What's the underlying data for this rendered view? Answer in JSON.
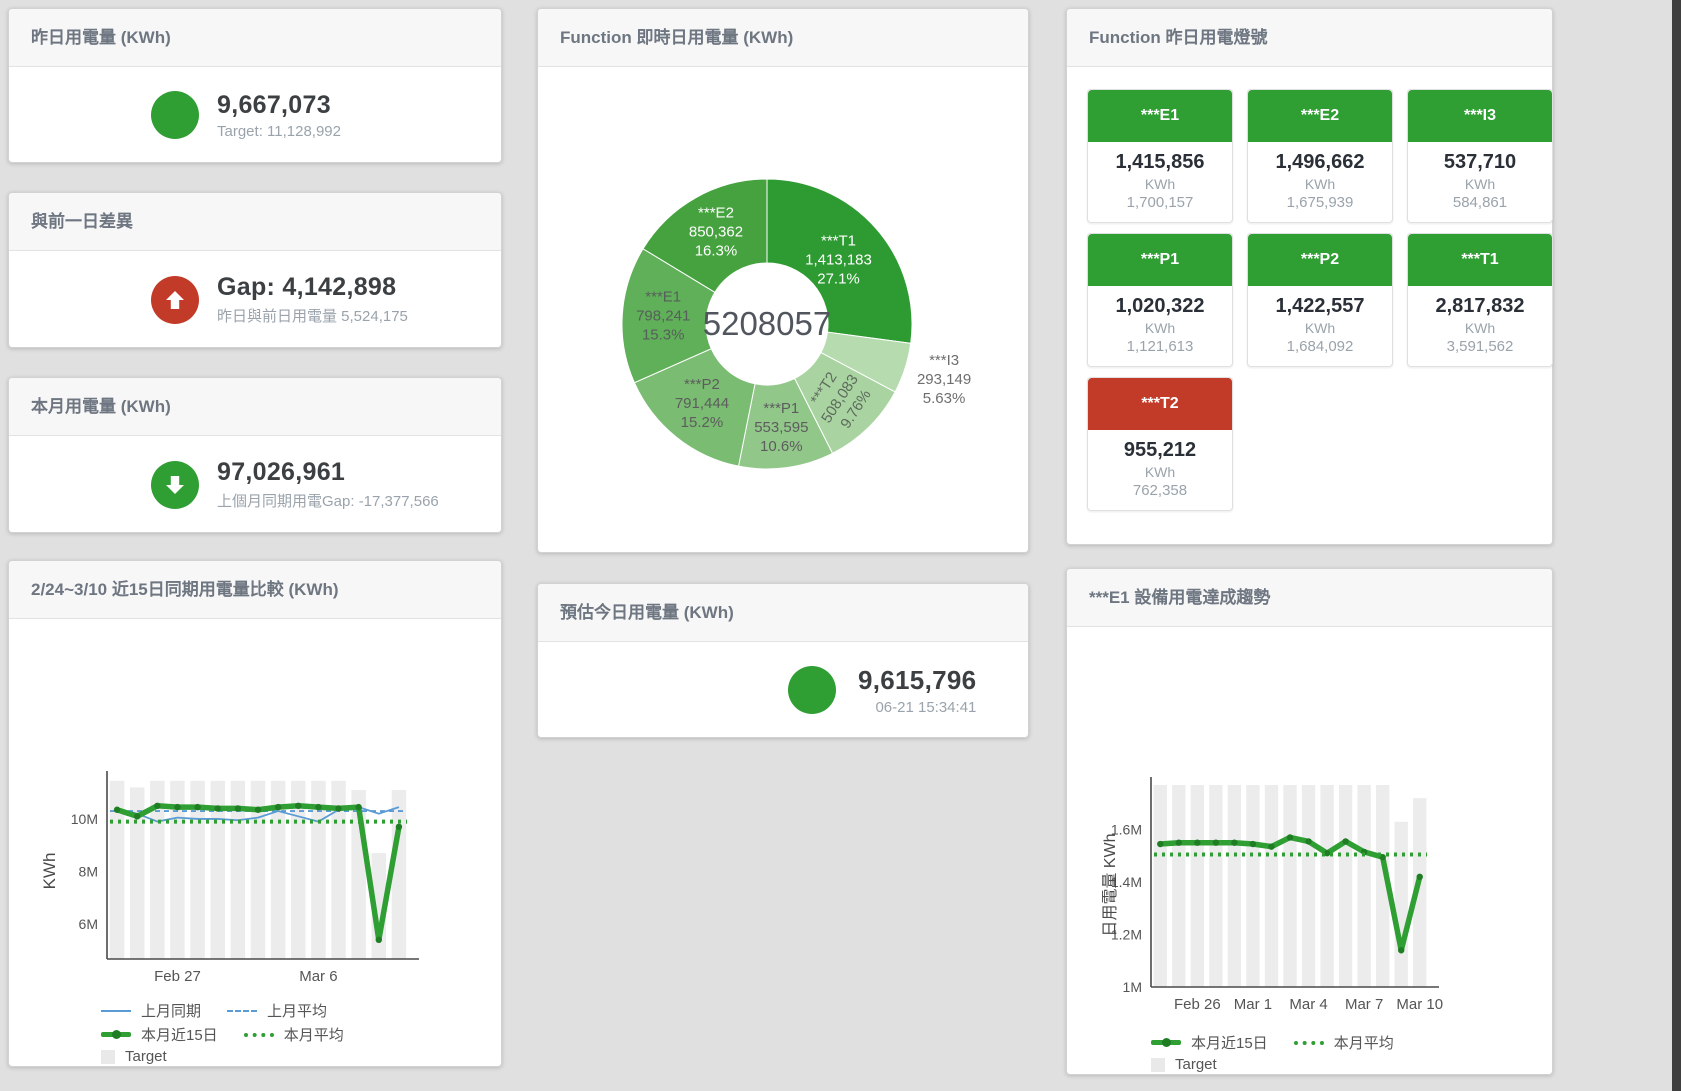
{
  "colors": {
    "green": "#2f9e33",
    "dark_green": "#1f7d24",
    "red": "#c23b28",
    "blue": "#5b9bd5",
    "bar_gray": "#ececec",
    "axis": "#4a4a4a"
  },
  "cards": {
    "yesterday": {
      "title": "昨日用電量 (KWh)",
      "value": "9,667,073",
      "sub": "Target: 11,128,992",
      "status_icon": "green-circle"
    },
    "diff": {
      "title": "與前一日差異",
      "value": "Gap: 4,142,898",
      "sub": "昨日與前日用電量 5,524,175",
      "status_icon": "red-up-arrow"
    },
    "month": {
      "title": "本月用電量 (KWh)",
      "value": "97,026,961",
      "sub": "上個月同期用電Gap: -17,377,566",
      "status_icon": "green-down-arrow"
    },
    "estimate": {
      "title": "預估今日用電量 (KWh)",
      "value": "9,615,796",
      "sub": "06-21 15:34:41",
      "status_icon": "green-circle"
    }
  },
  "lights": {
    "title": "Function 昨日用電燈號",
    "items": [
      {
        "label": "***E1",
        "value": "1,415,856",
        "unit": "KWh",
        "sub": "1,700,157",
        "status": "green"
      },
      {
        "label": "***E2",
        "value": "1,496,662",
        "unit": "KWh",
        "sub": "1,675,939",
        "status": "green"
      },
      {
        "label": "***I3",
        "value": "537,710",
        "unit": "KWh",
        "sub": "584,861",
        "status": "green"
      },
      {
        "label": "***P1",
        "value": "1,020,322",
        "unit": "KWh",
        "sub": "1,121,613",
        "status": "green"
      },
      {
        "label": "***P2",
        "value": "1,422,557",
        "unit": "KWh",
        "sub": "1,684,092",
        "status": "green"
      },
      {
        "label": "***T1",
        "value": "2,817,832",
        "unit": "KWh",
        "sub": "3,591,562",
        "status": "green"
      },
      {
        "label": "***T2",
        "value": "955,212",
        "unit": "KWh",
        "sub": "762,358",
        "status": "red"
      }
    ]
  },
  "chart_data": [
    {
      "id": "donut",
      "type": "pie",
      "title": "Function 即時日用電量 (KWh)",
      "center_label": "5208057",
      "slices": [
        {
          "name": "***T1",
          "value": 1413183,
          "pct": "27.1%",
          "pct_num": 27.1,
          "color": "#2e9b32",
          "label_color": "#ffffff",
          "label_pos": "inside",
          "label_r": 95
        },
        {
          "name": "***I3",
          "value": 293149,
          "pct": "5.63%",
          "pct_num": 5.63,
          "color": "#b5dbae",
          "label_color": "#6e6e6e",
          "label_pos": "outside",
          "label_r": 186
        },
        {
          "name": "***T2",
          "value": 508083,
          "pct": "9.76%",
          "pct_num": 9.76,
          "color": "#a9d4a1",
          "label_color": "#5d6b5d",
          "label_pos": "inside",
          "label_r": 106,
          "rotate": -57
        },
        {
          "name": "***P1",
          "value": 553595,
          "pct": "10.6%",
          "pct_num": 10.6,
          "color": "#92c78a",
          "label_color": "#5d5d5d",
          "label_pos": "inside",
          "label_r": 106
        },
        {
          "name": "***P2",
          "value": 791444,
          "pct": "15.2%",
          "pct_num": 15.2,
          "color": "#7abc72",
          "label_color": "#5d5d5d",
          "label_pos": "inside",
          "label_r": 104
        },
        {
          "name": "***E1",
          "value": 798241,
          "pct": "15.3%",
          "pct_num": 15.3,
          "color": "#60af59",
          "label_color": "#56605a",
          "label_pos": "inside",
          "label_r": 104
        },
        {
          "name": "***E2",
          "value": 850362,
          "pct": "16.3%",
          "pct_num": 16.3,
          "color": "#45a23f",
          "label_color": "#ffffff",
          "label_pos": "inside",
          "label_r": 104
        }
      ]
    },
    {
      "id": "compare",
      "type": "line+bar",
      "title": "2/24~3/10 近15日同期用電量比較 (KWh)",
      "ylabel": "KWh",
      "unit": "M KWh",
      "ylim": [
        4.67,
        11.52
      ],
      "yticks": [
        {
          "v": 6,
          "label": "6M"
        },
        {
          "v": 8,
          "label": "8M"
        },
        {
          "v": 10,
          "label": "10M"
        }
      ],
      "xticks": [
        {
          "i": 3,
          "label": "Feb 27"
        },
        {
          "i": 10,
          "label": "Mar 6"
        }
      ],
      "target_bars": [
        11.45,
        11.2,
        11.45,
        11.45,
        11.45,
        11.45,
        11.45,
        11.45,
        11.45,
        11.45,
        11.45,
        11.45,
        11.1,
        8.7,
        11.1
      ],
      "series": [
        {
          "name": "上月同期",
          "style": "blue-solid",
          "values": [
            10.4,
            10.2,
            9.9,
            10.05,
            10.0,
            10.0,
            9.95,
            10.05,
            10.3,
            10.1,
            9.9,
            10.35,
            10.45,
            10.2,
            10.45
          ]
        },
        {
          "name": "上月平均",
          "style": "blue-dashed",
          "avg_value": 10.3
        },
        {
          "name": "本月近15日",
          "style": "green-thick",
          "values": [
            10.35,
            10.1,
            10.5,
            10.45,
            10.45,
            10.4,
            10.4,
            10.35,
            10.45,
            10.5,
            10.45,
            10.4,
            10.45,
            5.4,
            9.7
          ]
        },
        {
          "name": "本月平均",
          "style": "green-dotted",
          "avg_value": 9.9
        }
      ],
      "legend": [
        {
          "label": "上月同期",
          "swatch": "line",
          "color": "#5b9bd5"
        },
        {
          "label": "上月平均",
          "swatch": "dash",
          "color": "#5b9bd5"
        },
        {
          "label": "本月近15日",
          "swatch": "thick",
          "color": "#2f9e33"
        },
        {
          "label": "本月平均",
          "swatch": "dots",
          "color": "#2f9e33"
        },
        {
          "label": "Target",
          "swatch": "square",
          "color": "#e9e9e9"
        }
      ]
    },
    {
      "id": "trend",
      "type": "line+bar",
      "title": "***E1 設備用電達成趨勢",
      "ylabel": "日用電量 KWh",
      "unit": "M KWh",
      "ylim": [
        1.0,
        1.77
      ],
      "yticks": [
        {
          "v": 1.0,
          "label": "1M"
        },
        {
          "v": 1.2,
          "label": "1.2M"
        },
        {
          "v": 1.4,
          "label": "1.4M"
        },
        {
          "v": 1.6,
          "label": "1.6M"
        }
      ],
      "xticks": [
        {
          "i": 2,
          "label": "Feb 26"
        },
        {
          "i": 5,
          "label": "Mar 1"
        },
        {
          "i": 8,
          "label": "Mar 4"
        },
        {
          "i": 11,
          "label": "Mar 7"
        },
        {
          "i": 14,
          "label": "Mar 10"
        }
      ],
      "target_bars": [
        1.77,
        1.77,
        1.77,
        1.77,
        1.77,
        1.77,
        1.77,
        1.77,
        1.77,
        1.77,
        1.77,
        1.77,
        1.77,
        1.63,
        1.72
      ],
      "series": [
        {
          "name": "本月近15日",
          "style": "green-thick",
          "values": [
            1.545,
            1.55,
            1.55,
            1.55,
            1.55,
            1.545,
            1.535,
            1.57,
            1.555,
            1.51,
            1.555,
            1.515,
            1.495,
            1.14,
            1.42
          ]
        },
        {
          "name": "本月平均",
          "style": "green-dotted",
          "avg_value": 1.505
        }
      ],
      "legend": [
        {
          "label": "本月近15日",
          "swatch": "thick",
          "color": "#2f9e33"
        },
        {
          "label": "本月平均",
          "swatch": "dots",
          "color": "#2f9e33"
        },
        {
          "label": "Target",
          "swatch": "square",
          "color": "#e9e9e9"
        }
      ]
    }
  ]
}
